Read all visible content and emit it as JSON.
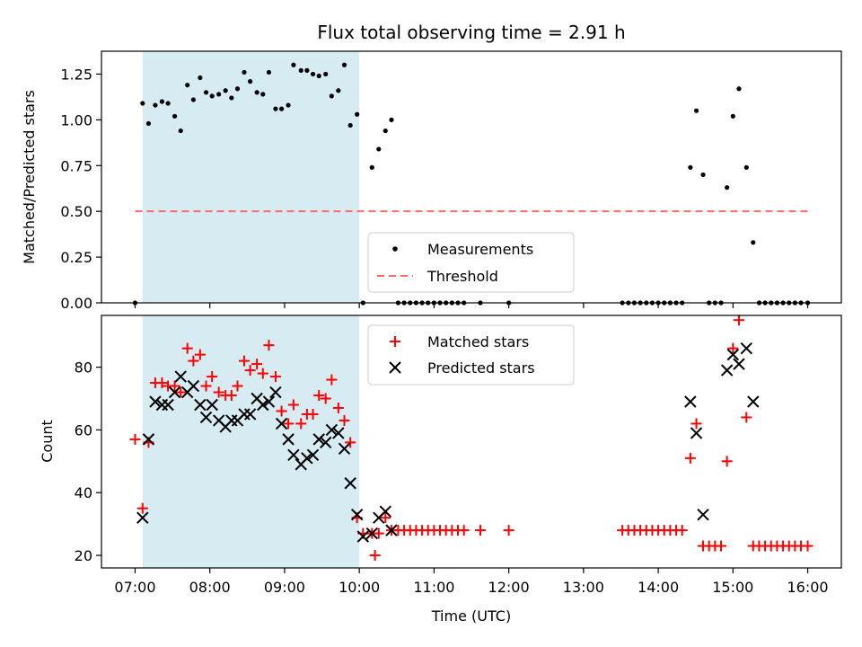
{
  "chart_data": [
    {
      "type": "scatter",
      "title": "Flux total observing time = 2.91 h",
      "xlabel": "",
      "ylabel": "Matched/Predicted stars",
      "ylim": [
        0,
        1.375
      ],
      "yticks": [
        "0.00",
        "0.25",
        "0.50",
        "0.75",
        "1.00",
        "1.25"
      ],
      "shaded_span": {
        "from": 7.1,
        "to": 10.0,
        "color": "#add8e6"
      },
      "threshold": {
        "label": "Threshold",
        "value": 0.5,
        "from": 7.0,
        "to": 16.0,
        "color": "#ff6b6b"
      },
      "legend": {
        "placement": "lower-center",
        "entries": [
          "Measurements",
          "Threshold"
        ]
      },
      "series": [
        {
          "name": "Measurements",
          "color": "#000000",
          "points": [
            [
              7.0,
              0.0
            ],
            [
              7.1,
              1.09
            ],
            [
              7.18,
              0.98
            ],
            [
              7.27,
              1.08
            ],
            [
              7.36,
              1.1
            ],
            [
              7.44,
              1.09
            ],
            [
              7.53,
              1.02
            ],
            [
              7.61,
              0.94
            ],
            [
              7.7,
              1.19
            ],
            [
              7.78,
              1.11
            ],
            [
              7.87,
              1.23
            ],
            [
              7.95,
              1.15
            ],
            [
              8.03,
              1.13
            ],
            [
              8.12,
              1.14
            ],
            [
              8.21,
              1.16
            ],
            [
              8.29,
              1.12
            ],
            [
              8.37,
              1.17
            ],
            [
              8.46,
              1.26
            ],
            [
              8.54,
              1.21
            ],
            [
              8.63,
              1.15
            ],
            [
              8.71,
              1.14
            ],
            [
              8.79,
              1.26
            ],
            [
              8.88,
              1.06
            ],
            [
              8.96,
              1.06
            ],
            [
              9.05,
              1.08
            ],
            [
              9.12,
              1.3
            ],
            [
              9.22,
              1.27
            ],
            [
              9.3,
              1.27
            ],
            [
              9.38,
              1.25
            ],
            [
              9.46,
              1.24
            ],
            [
              9.55,
              1.25
            ],
            [
              9.63,
              1.13
            ],
            [
              9.72,
              1.16
            ],
            [
              9.8,
              1.3
            ],
            [
              9.88,
              0.97
            ],
            [
              9.97,
              1.03
            ],
            [
              10.05,
              0.0
            ],
            [
              10.17,
              0.74
            ],
            [
              10.26,
              0.84
            ],
            [
              10.35,
              0.94
            ],
            [
              10.43,
              1.0
            ],
            [
              10.52,
              0.0
            ],
            [
              10.6,
              0.0
            ],
            [
              10.68,
              0.0
            ],
            [
              10.76,
              0.0
            ],
            [
              10.84,
              0.0
            ],
            [
              10.92,
              0.0
            ],
            [
              11.0,
              0.0
            ],
            [
              11.08,
              0.0
            ],
            [
              11.16,
              0.0
            ],
            [
              11.24,
              0.0
            ],
            [
              11.32,
              0.0
            ],
            [
              11.4,
              0.0
            ],
            [
              11.62,
              0.0
            ],
            [
              12.0,
              0.0
            ],
            [
              13.52,
              0.0
            ],
            [
              13.6,
              0.0
            ],
            [
              13.68,
              0.0
            ],
            [
              13.76,
              0.0
            ],
            [
              13.84,
              0.0
            ],
            [
              13.92,
              0.0
            ],
            [
              14.0,
              0.0
            ],
            [
              14.08,
              0.0
            ],
            [
              14.16,
              0.0
            ],
            [
              14.24,
              0.0
            ],
            [
              14.32,
              0.0
            ],
            [
              14.43,
              0.74
            ],
            [
              14.51,
              1.05
            ],
            [
              14.6,
              0.7
            ],
            [
              14.68,
              0.0
            ],
            [
              14.76,
              0.0
            ],
            [
              14.84,
              0.0
            ],
            [
              14.92,
              0.63
            ],
            [
              15.0,
              1.02
            ],
            [
              15.08,
              1.17
            ],
            [
              15.18,
              0.74
            ],
            [
              15.27,
              0.33
            ],
            [
              15.35,
              0.0
            ],
            [
              15.43,
              0.0
            ],
            [
              15.51,
              0.0
            ],
            [
              15.59,
              0.0
            ],
            [
              15.67,
              0.0
            ],
            [
              15.75,
              0.0
            ],
            [
              15.83,
              0.0
            ],
            [
              15.91,
              0.0
            ],
            [
              16.0,
              0.0
            ]
          ]
        }
      ]
    },
    {
      "type": "scatter",
      "title": "",
      "xlabel": "Time (UTC)",
      "ylabel": "Count",
      "xlim": [
        6.55,
        16.45
      ],
      "ylim": [
        16,
        96.5
      ],
      "yticks": [
        "20",
        "40",
        "60",
        "80"
      ],
      "xticks": [
        "07:00",
        "08:00",
        "09:00",
        "10:00",
        "11:00",
        "12:00",
        "13:00",
        "14:00",
        "15:00",
        "16:00"
      ],
      "shaded_span": {
        "from": 7.1,
        "to": 10.0,
        "color": "#add8e6"
      },
      "legend": {
        "placement": "upper-center",
        "entries": [
          "Matched stars",
          "Predicted stars"
        ]
      },
      "series": [
        {
          "name": "Matched stars",
          "marker": "+",
          "color": "#ff0000",
          "points": [
            [
              7.0,
              57
            ],
            [
              7.1,
              35
            ],
            [
              7.18,
              56
            ],
            [
              7.27,
              75
            ],
            [
              7.36,
              75
            ],
            [
              7.44,
              74
            ],
            [
              7.53,
              74
            ],
            [
              7.61,
              72
            ],
            [
              7.7,
              86
            ],
            [
              7.78,
              82
            ],
            [
              7.87,
              84
            ],
            [
              7.95,
              74
            ],
            [
              8.03,
              77
            ],
            [
              8.12,
              72
            ],
            [
              8.21,
              71
            ],
            [
              8.29,
              71
            ],
            [
              8.37,
              74
            ],
            [
              8.46,
              82
            ],
            [
              8.54,
              79
            ],
            [
              8.63,
              81
            ],
            [
              8.71,
              78
            ],
            [
              8.79,
              87
            ],
            [
              8.88,
              77
            ],
            [
              8.96,
              66
            ],
            [
              9.05,
              62
            ],
            [
              9.12,
              68
            ],
            [
              9.22,
              62
            ],
            [
              9.3,
              65
            ],
            [
              9.38,
              65
            ],
            [
              9.46,
              71
            ],
            [
              9.55,
              70
            ],
            [
              9.63,
              76
            ],
            [
              9.72,
              67
            ],
            [
              9.8,
              63
            ],
            [
              9.88,
              56
            ],
            [
              9.97,
              32
            ],
            [
              10.05,
              27
            ],
            [
              10.17,
              27
            ],
            [
              10.21,
              20
            ],
            [
              10.26,
              27
            ],
            [
              10.35,
              32
            ],
            [
              10.43,
              28
            ],
            [
              10.52,
              28
            ],
            [
              10.6,
              28
            ],
            [
              10.68,
              28
            ],
            [
              10.76,
              28
            ],
            [
              10.84,
              28
            ],
            [
              10.92,
              28
            ],
            [
              11.0,
              28
            ],
            [
              11.08,
              28
            ],
            [
              11.16,
              28
            ],
            [
              11.24,
              28
            ],
            [
              11.32,
              28
            ],
            [
              11.4,
              28
            ],
            [
              11.62,
              28
            ],
            [
              12.0,
              28
            ],
            [
              13.52,
              28
            ],
            [
              13.6,
              28
            ],
            [
              13.68,
              28
            ],
            [
              13.76,
              28
            ],
            [
              13.84,
              28
            ],
            [
              13.92,
              28
            ],
            [
              14.0,
              28
            ],
            [
              14.08,
              28
            ],
            [
              14.16,
              28
            ],
            [
              14.24,
              28
            ],
            [
              14.32,
              28
            ],
            [
              14.43,
              51
            ],
            [
              14.51,
              62
            ],
            [
              14.6,
              23
            ],
            [
              14.68,
              23
            ],
            [
              14.76,
              23
            ],
            [
              14.84,
              23
            ],
            [
              14.92,
              50
            ],
            [
              15.0,
              86
            ],
            [
              15.08,
              95
            ],
            [
              15.18,
              64
            ],
            [
              15.27,
              23
            ],
            [
              15.35,
              23
            ],
            [
              15.43,
              23
            ],
            [
              15.51,
              23
            ],
            [
              15.59,
              23
            ],
            [
              15.67,
              23
            ],
            [
              15.75,
              23
            ],
            [
              15.83,
              23
            ],
            [
              15.91,
              23
            ],
            [
              16.0,
              23
            ]
          ]
        },
        {
          "name": "Predicted stars",
          "marker": "x",
          "color": "#000000",
          "points": [
            [
              7.1,
              32
            ],
            [
              7.18,
              57
            ],
            [
              7.27,
              69
            ],
            [
              7.36,
              68
            ],
            [
              7.44,
              68
            ],
            [
              7.53,
              72
            ],
            [
              7.61,
              77
            ],
            [
              7.7,
              72
            ],
            [
              7.78,
              74
            ],
            [
              7.87,
              68
            ],
            [
              7.95,
              64
            ],
            [
              8.03,
              68
            ],
            [
              8.12,
              63
            ],
            [
              8.21,
              61
            ],
            [
              8.29,
              63
            ],
            [
              8.37,
              63
            ],
            [
              8.46,
              65
            ],
            [
              8.54,
              65
            ],
            [
              8.63,
              70
            ],
            [
              8.71,
              68
            ],
            [
              8.79,
              69
            ],
            [
              8.88,
              72
            ],
            [
              8.96,
              62
            ],
            [
              9.05,
              57
            ],
            [
              9.12,
              52
            ],
            [
              9.22,
              49
            ],
            [
              9.3,
              51
            ],
            [
              9.38,
              52
            ],
            [
              9.46,
              57
            ],
            [
              9.55,
              56
            ],
            [
              9.63,
              60
            ],
            [
              9.72,
              59
            ],
            [
              9.8,
              54
            ],
            [
              9.88,
              43
            ],
            [
              9.97,
              33
            ],
            [
              10.05,
              26
            ],
            [
              10.17,
              27
            ],
            [
              10.26,
              32
            ],
            [
              10.35,
              34
            ],
            [
              10.43,
              28
            ],
            [
              14.43,
              69
            ],
            [
              14.51,
              59
            ],
            [
              14.6,
              33
            ],
            [
              14.92,
              79
            ],
            [
              15.0,
              84
            ],
            [
              15.08,
              81
            ],
            [
              15.18,
              86
            ],
            [
              15.27,
              69
            ]
          ]
        }
      ]
    }
  ]
}
